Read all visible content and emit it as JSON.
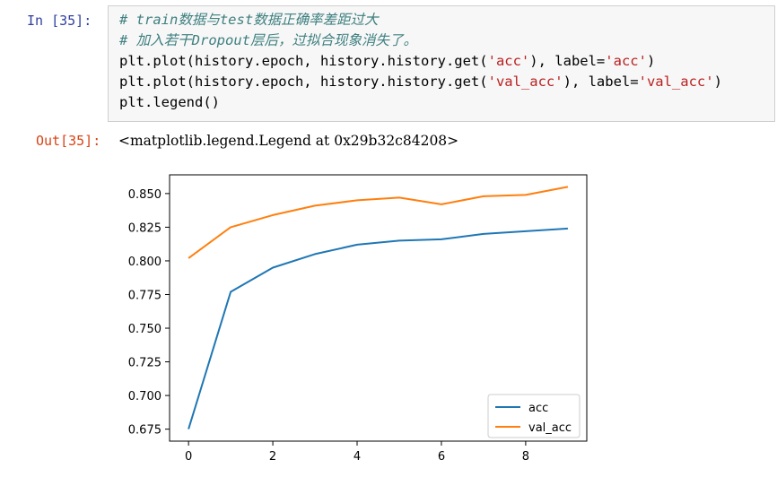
{
  "cell": {
    "in_prompt": "In  [35]:",
    "out_prompt": "Out[35]:",
    "code": {
      "line1": "# train数据与test数据正确率差距过大",
      "line2": "# 加入若干Dropout层后，过拟合现象消失了。",
      "line3": {
        "a": "plt.plot(history.epoch, history.history.get(",
        "b": "'acc'",
        "c": "), label=",
        "d": "'acc'",
        "e": ")"
      },
      "line4": {
        "a": "plt.plot(history.epoch, history.history.get(",
        "b": "'val_acc'",
        "c": "), label=",
        "d": "'val_acc'",
        "e": ")"
      },
      "line5": "plt.legend()"
    },
    "output_text": "<matplotlib.legend.Legend at 0x29b32c84208>"
  },
  "chart_data": {
    "type": "line",
    "x": [
      0,
      1,
      2,
      3,
      4,
      5,
      6,
      7,
      8,
      9
    ],
    "series": [
      {
        "name": "acc",
        "color": "#1f77b4",
        "values": [
          0.675,
          0.777,
          0.795,
          0.805,
          0.812,
          0.815,
          0.816,
          0.82,
          0.822,
          0.824
        ]
      },
      {
        "name": "val_acc",
        "color": "#ff7f0e",
        "values": [
          0.802,
          0.825,
          0.834,
          0.841,
          0.845,
          0.847,
          0.842,
          0.848,
          0.849,
          0.855
        ]
      }
    ],
    "xticks": [
      0,
      2,
      4,
      6,
      8
    ],
    "yticks": [
      0.675,
      0.7,
      0.725,
      0.75,
      0.775,
      0.8,
      0.825,
      0.85
    ],
    "xtick_labels": [
      "0",
      "2",
      "4",
      "6",
      "8"
    ],
    "ytick_labels": [
      "0.675",
      "0.700",
      "0.725",
      "0.750",
      "0.775",
      "0.800",
      "0.825",
      "0.850"
    ],
    "xlim": [
      -0.45,
      9.45
    ],
    "ylim": [
      0.6661,
      0.8639
    ],
    "legend_position": "lower-right",
    "grid": false
  }
}
